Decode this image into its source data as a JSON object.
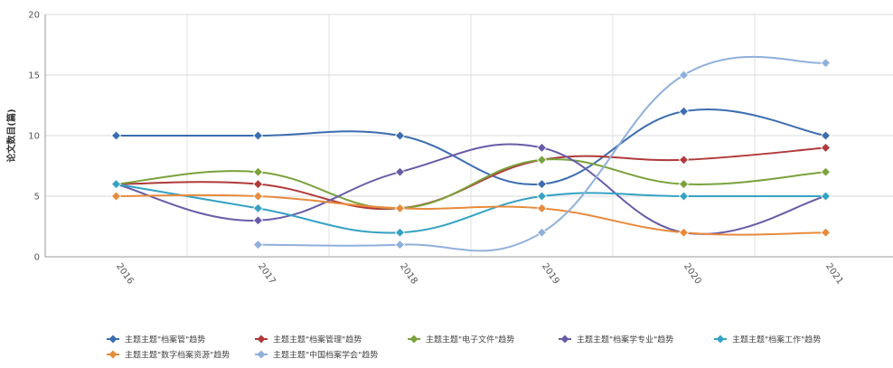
{
  "chart_data": {
    "type": "line",
    "title": "",
    "xlabel": "",
    "ylabel": "论文数目(篇)",
    "x": [
      "2016",
      "2017",
      "2018",
      "2019",
      "2020",
      "2021"
    ],
    "ylim": [
      0,
      20
    ],
    "yticks": [
      0,
      5,
      10,
      15,
      20
    ],
    "grid": true,
    "legend_position": "bottom",
    "series": [
      {
        "name": "主题主题\"档案管\"趋势",
        "color": "#3c6db0",
        "marker": "diamond",
        "values": [
          10,
          10,
          10,
          6,
          12,
          10
        ]
      },
      {
        "name": "主题主题\"档案管理\"趋势",
        "color": "#b03a3a",
        "marker": "diamond",
        "values": [
          6,
          6,
          4,
          8,
          8,
          9
        ]
      },
      {
        "name": "主题主题\"电子文件\"趋势",
        "color": "#7aa23c",
        "marker": "diamond",
        "values": [
          6,
          7,
          4,
          8,
          6,
          7
        ]
      },
      {
        "name": "主题主题\"档案学专业\"趋势",
        "color": "#6a5ba8",
        "marker": "diamond",
        "values": [
          6,
          3,
          7,
          9,
          2,
          5
        ]
      },
      {
        "name": "主题主题\"档案工作\"趋势",
        "color": "#35a2c4",
        "marker": "diamond",
        "values": [
          6,
          4,
          2,
          5,
          5,
          5
        ]
      },
      {
        "name": "主题主题\"数字档案资源\"趋势",
        "color": "#e88a3c",
        "marker": "diamond",
        "values": [
          5,
          5,
          4,
          4,
          2,
          2
        ]
      },
      {
        "name": "主题主题\"中国档案学会\"趋势",
        "color": "#8fb0dc",
        "marker": "diamond",
        "values": [
          null,
          1,
          1,
          2,
          15,
          16
        ]
      }
    ]
  }
}
